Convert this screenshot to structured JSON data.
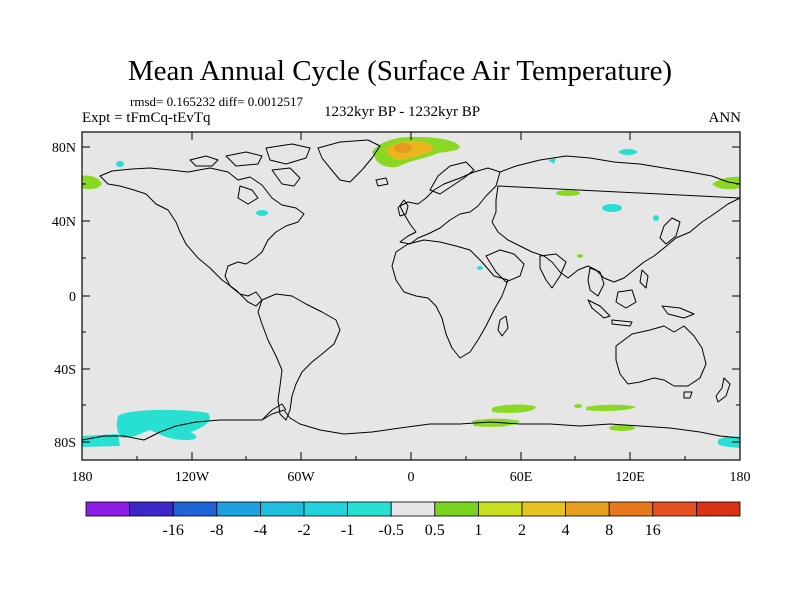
{
  "title": "Mean Annual Cycle (Surface Air Temperature)",
  "stats_line": "rmsd= 0.165232 diff= 0.0012517",
  "experiment": "Expt = tFmCq-tEvTq",
  "period": "1232kyr BP - 1232kyr BP",
  "season": "ANN",
  "colors": {
    "background": "#e6e6e6",
    "coastline": "#000000",
    "positive_small": "#8ad824",
    "positive_mid": "#e8b61e",
    "negative_small": "#27e0d2",
    "frame": "#000000"
  },
  "axes": {
    "y_ticks": [
      "80N",
      "40N",
      "0",
      "40S",
      "80S"
    ],
    "x_ticks": [
      "180",
      "120W",
      "60W",
      "0",
      "60E",
      "120E",
      "180"
    ]
  },
  "colorbar": {
    "colors": [
      "#8c1ee6",
      "#3c28c8",
      "#1e64d7",
      "#1ea0e1",
      "#1ebedc",
      "#22d2dc",
      "#27e0d2",
      "#e6e6e6",
      "#78d21e",
      "#c8e01e",
      "#e6c31e",
      "#e6a01e",
      "#e6781e",
      "#e6501e",
      "#dc3214"
    ],
    "labels": [
      "-16",
      "-8",
      "-4",
      "-2",
      "-1",
      "-0.5",
      "0.5",
      "1",
      "2",
      "4",
      "8",
      "16"
    ]
  }
}
